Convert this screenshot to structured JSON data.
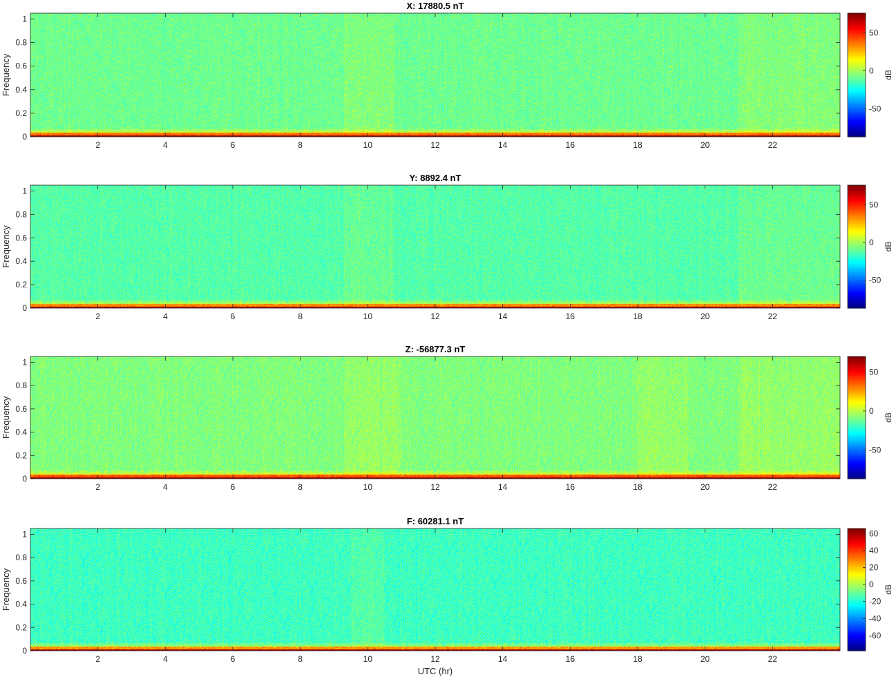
{
  "chart_data": [
    {
      "type": "heatmap",
      "title": "X: 17880.5 nT",
      "ylabel": "Frequency",
      "xlabel": "",
      "xlim": [
        0,
        24
      ],
      "ylim": [
        0,
        1.05
      ],
      "xticks": [
        2,
        4,
        6,
        8,
        10,
        12,
        14,
        16,
        18,
        20,
        22
      ],
      "yticks": [
        0,
        0.2,
        0.4,
        0.6,
        0.8,
        1
      ],
      "colormap": "jet",
      "colorbar": {
        "label": "dB",
        "clim": [
          -87,
          76
        ],
        "ticks": [
          -50,
          0,
          50
        ]
      },
      "field": {
        "background_db": -8,
        "low_freq_band_db": 45,
        "dc_line_db": 76,
        "elevated_hours": [
          [
            9.3,
            10.8
          ],
          [
            21.0,
            24.0
          ]
        ]
      }
    },
    {
      "type": "heatmap",
      "title": "Y: 8892.4 nT",
      "ylabel": "Frequency",
      "xlabel": "",
      "xlim": [
        0,
        24
      ],
      "ylim": [
        0,
        1.05
      ],
      "xticks": [
        2,
        4,
        6,
        8,
        10,
        12,
        14,
        16,
        18,
        20,
        22
      ],
      "yticks": [
        0,
        0.2,
        0.4,
        0.6,
        0.8,
        1
      ],
      "colormap": "jet",
      "colorbar": {
        "label": "dB",
        "clim": [
          -87,
          76
        ],
        "ticks": [
          -50,
          0,
          50
        ]
      },
      "field": {
        "background_db": -12,
        "low_freq_band_db": 42,
        "dc_line_db": 76,
        "elevated_hours": [
          [
            9.3,
            10.8
          ],
          [
            21.0,
            24.0
          ]
        ]
      }
    },
    {
      "type": "heatmap",
      "title": "Z: -56877.3 nT",
      "ylabel": "Frequency",
      "xlabel": "",
      "xlim": [
        0,
        24
      ],
      "ylim": [
        0,
        1.05
      ],
      "xticks": [
        2,
        4,
        6,
        8,
        10,
        12,
        14,
        16,
        18,
        20,
        22
      ],
      "yticks": [
        0,
        0.2,
        0.4,
        0.6,
        0.8,
        1
      ],
      "colormap": "jet",
      "colorbar": {
        "label": "dB",
        "clim": [
          -87,
          70
        ],
        "ticks": [
          -50,
          0,
          50
        ]
      },
      "field": {
        "background_db": -8,
        "low_freq_band_db": 45,
        "dc_line_db": 70,
        "elevated_hours": [
          [
            9.3,
            11.0
          ],
          [
            18.0,
            19.5
          ],
          [
            21.0,
            24.0
          ]
        ]
      }
    },
    {
      "type": "heatmap",
      "title": "F: 60281.1 nT",
      "ylabel": "Frequency",
      "xlabel": "UTC (hr)",
      "xlim": [
        0,
        24
      ],
      "ylim": [
        0,
        1.05
      ],
      "xticks": [
        2,
        4,
        6,
        8,
        10,
        12,
        14,
        16,
        18,
        20,
        22
      ],
      "yticks": [
        0,
        0.2,
        0.4,
        0.6,
        0.8,
        1
      ],
      "colormap": "jet",
      "colorbar": {
        "label": "dB",
        "clim": [
          -78,
          66
        ],
        "ticks": [
          -60,
          -40,
          -20,
          0,
          20,
          40,
          60
        ]
      },
      "field": {
        "background_db": -15,
        "low_freq_band_db": 35,
        "dc_line_db": 66,
        "elevated_hours": [
          [
            9.5,
            10.5
          ]
        ]
      }
    }
  ]
}
